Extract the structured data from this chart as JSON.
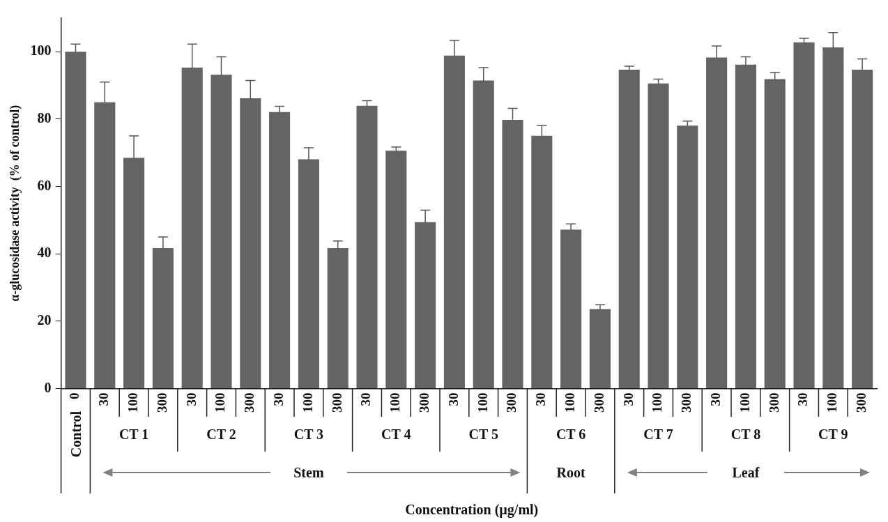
{
  "chart_data": {
    "type": "bar",
    "ylabel": "α-glucosidase activity  (% of control)",
    "categories": [
      "0",
      "30",
      "100",
      "300",
      "30",
      "100",
      "300",
      "30",
      "100",
      "300",
      "30",
      "100",
      "300",
      "30",
      "100",
      "300",
      "30",
      "100",
      "300",
      "30",
      "100",
      "300",
      "30",
      "100",
      "300",
      "30",
      "100",
      "300"
    ],
    "values": [
      100,
      85,
      68.5,
      41.7,
      95.3,
      93.2,
      86.2,
      82.1,
      68.1,
      41.7,
      84,
      70.6,
      49.4,
      98.9,
      91.5,
      79.8,
      75.1,
      47.2,
      23.6,
      94.7,
      90.6,
      78.1,
      98.3,
      96.2,
      91.9,
      102.8,
      101.3,
      94.7
    ],
    "errors": [
      2.3,
      6,
      6.5,
      3.3,
      7,
      5.3,
      5.3,
      1.7,
      3.4,
      2.1,
      1.5,
      1.1,
      3.6,
      4.5,
      3.8,
      3.4,
      3,
      1.7,
      1.3,
      1,
      1.3,
      1.3,
      3.4,
      2.3,
      1.9,
      1.2,
      4.4,
      3.2
    ],
    "color": "#646464",
    "ylim": [
      0,
      110
    ],
    "yticks": [
      0,
      20,
      40,
      60,
      80,
      100
    ],
    "grid": false,
    "legend": false,
    "annotations": [
      "Control",
      "CT 1",
      "CT 2",
      "CT 3",
      "CT 4",
      "CT 5",
      "CT 6",
      "CT 7",
      "CT 8",
      "CT 9",
      "Stem",
      "Root",
      "Leaf",
      "Concentration (µg/ml)"
    ]
  }
}
